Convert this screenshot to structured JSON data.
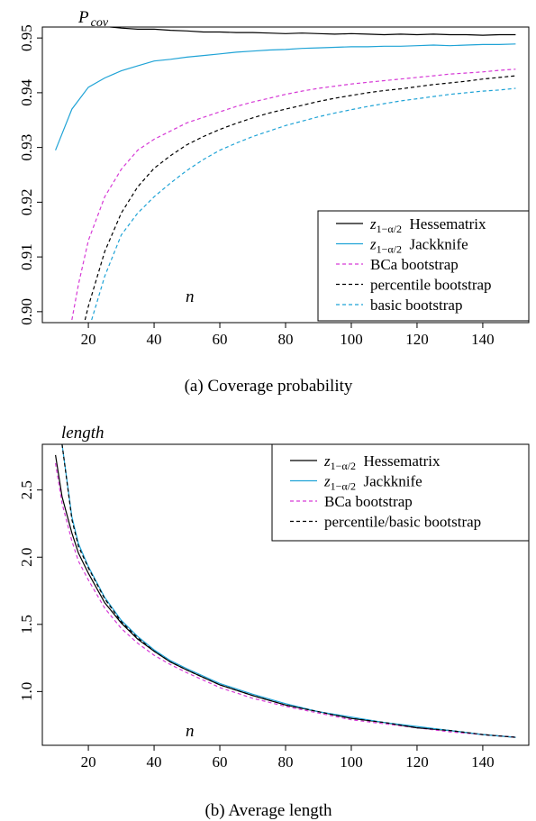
{
  "chart_data": [
    {
      "type": "line",
      "caption": "(a)  Coverage probability",
      "ylabel": "P",
      "ylabel_sub": "cov",
      "xlabel": "n",
      "xlim": [
        6,
        154
      ],
      "ylim": [
        0.898,
        0.952
      ],
      "xticks": [
        20,
        40,
        60,
        80,
        100,
        120,
        140
      ],
      "yticks": [
        0.9,
        0.91,
        0.92,
        0.93,
        0.94,
        0.95
      ],
      "ytick_labels": [
        "0.90",
        "0.91",
        "0.92",
        "0.93",
        "0.94",
        "0.95"
      ],
      "legend_position": "bottom-right",
      "series": [
        {
          "name": "Hessematrix",
          "prefix": "z",
          "prefix_sub": "1−α/2",
          "color": "#000000",
          "dashed": false,
          "x": [
            10,
            15,
            20,
            25,
            30,
            35,
            40,
            45,
            50,
            55,
            60,
            65,
            70,
            75,
            80,
            85,
            90,
            95,
            100,
            105,
            110,
            115,
            120,
            125,
            130,
            135,
            140,
            145,
            150
          ],
          "y": [
            0.9525,
            0.9525,
            0.9522,
            0.9521,
            0.9518,
            0.9516,
            0.9516,
            0.9514,
            0.9513,
            0.9511,
            0.9511,
            0.951,
            0.951,
            0.9509,
            0.9508,
            0.9509,
            0.9508,
            0.9507,
            0.9508,
            0.9507,
            0.9506,
            0.9507,
            0.9506,
            0.9507,
            0.9506,
            0.9506,
            0.9505,
            0.9506,
            0.9506
          ]
        },
        {
          "name": "Jackknife",
          "prefix": "z",
          "prefix_sub": "1−α/2",
          "color": "#1fa3d6",
          "dashed": false,
          "x": [
            10,
            15,
            20,
            25,
            30,
            35,
            40,
            45,
            50,
            55,
            60,
            65,
            70,
            75,
            80,
            85,
            90,
            95,
            100,
            105,
            110,
            115,
            120,
            125,
            130,
            135,
            140,
            145,
            150
          ],
          "y": [
            0.9295,
            0.937,
            0.941,
            0.9427,
            0.944,
            0.9449,
            0.9458,
            0.9461,
            0.9465,
            0.9468,
            0.9471,
            0.9474,
            0.9476,
            0.9478,
            0.9479,
            0.9481,
            0.9482,
            0.9483,
            0.9484,
            0.9484,
            0.9485,
            0.9485,
            0.9486,
            0.9487,
            0.9486,
            0.9487,
            0.9488,
            0.9488,
            0.9489
          ]
        },
        {
          "name": "BCa bootstrap",
          "color": "#d63ad6",
          "dashed": true,
          "x": [
            15,
            17,
            20,
            25,
            30,
            35,
            40,
            45,
            50,
            55,
            60,
            65,
            70,
            75,
            80,
            85,
            90,
            95,
            100,
            105,
            110,
            115,
            120,
            125,
            130,
            135,
            140,
            145,
            150
          ],
          "y": [
            0.8985,
            0.905,
            0.913,
            0.921,
            0.926,
            0.9295,
            0.9315,
            0.933,
            0.9345,
            0.9355,
            0.9365,
            0.9375,
            0.9383,
            0.939,
            0.9397,
            0.9403,
            0.9408,
            0.9412,
            0.9416,
            0.9419,
            0.9422,
            0.9425,
            0.9428,
            0.9431,
            0.9434,
            0.9436,
            0.9438,
            0.9441,
            0.9443
          ]
        },
        {
          "name": "percentile bootstrap",
          "color": "#000000",
          "dashed": true,
          "x": [
            19,
            20,
            22,
            25,
            30,
            35,
            40,
            45,
            50,
            55,
            60,
            65,
            70,
            75,
            80,
            85,
            90,
            95,
            100,
            105,
            110,
            115,
            120,
            125,
            130,
            135,
            140,
            145,
            150
          ],
          "y": [
            0.8985,
            0.901,
            0.905,
            0.911,
            0.918,
            0.9228,
            0.9262,
            0.9285,
            0.9305,
            0.932,
            0.9333,
            0.9344,
            0.9354,
            0.9363,
            0.937,
            0.9377,
            0.9384,
            0.939,
            0.9395,
            0.94,
            0.9404,
            0.9407,
            0.9411,
            0.9415,
            0.9418,
            0.9421,
            0.9425,
            0.9428,
            0.9431
          ]
        },
        {
          "name": "basic bootstrap",
          "color": "#1fa3d6",
          "dashed": true,
          "x": [
            21,
            22,
            25,
            30,
            35,
            40,
            45,
            50,
            55,
            60,
            65,
            70,
            75,
            80,
            85,
            90,
            95,
            100,
            105,
            110,
            115,
            120,
            125,
            130,
            135,
            140,
            145,
            150
          ],
          "y": [
            0.8985,
            0.9005,
            0.9065,
            0.914,
            0.918,
            0.921,
            0.9235,
            0.9258,
            0.9278,
            0.9295,
            0.9308,
            0.932,
            0.933,
            0.934,
            0.9348,
            0.9356,
            0.9363,
            0.9369,
            0.9375,
            0.938,
            0.9385,
            0.9389,
            0.9393,
            0.9397,
            0.94,
            0.9403,
            0.9405,
            0.9408
          ]
        }
      ]
    },
    {
      "type": "line",
      "caption": "(b)  Average length",
      "ylabel": "length",
      "xlabel": "n",
      "xlim": [
        6,
        154
      ],
      "ylim": [
        0.6,
        2.84
      ],
      "xticks": [
        20,
        40,
        60,
        80,
        100,
        120,
        140
      ],
      "yticks": [
        1.0,
        1.5,
        2.0,
        2.5
      ],
      "ytick_labels": [
        "1.0",
        "1.5",
        "2.0",
        "2.5"
      ],
      "legend_position": "top-right",
      "series": [
        {
          "name": "Hessematrix",
          "prefix": "z",
          "prefix_sub": "1−α/2",
          "color": "#000000",
          "dashed": false,
          "x": [
            10,
            12,
            15,
            17,
            20,
            25,
            30,
            35,
            40,
            45,
            50,
            60,
            70,
            80,
            90,
            100,
            110,
            120,
            130,
            140,
            150
          ],
          "y": [
            2.76,
            2.45,
            2.18,
            2.03,
            1.88,
            1.66,
            1.51,
            1.39,
            1.3,
            1.22,
            1.16,
            1.05,
            0.97,
            0.9,
            0.85,
            0.8,
            0.77,
            0.73,
            0.71,
            0.68,
            0.66
          ]
        },
        {
          "name": "Jackknife",
          "prefix": "z",
          "prefix_sub": "1−α/2",
          "color": "#1fa3d6",
          "dashed": false,
          "x": [
            12,
            15,
            17,
            20,
            25,
            30,
            35,
            40,
            45,
            50,
            60,
            70,
            80,
            90,
            100,
            110,
            120,
            130,
            140,
            150
          ],
          "y": [
            2.84,
            2.3,
            2.1,
            1.93,
            1.7,
            1.53,
            1.41,
            1.31,
            1.23,
            1.17,
            1.06,
            0.98,
            0.91,
            0.85,
            0.81,
            0.77,
            0.74,
            0.71,
            0.68,
            0.66
          ]
        },
        {
          "name": "BCa bootstrap",
          "color": "#d63ad6",
          "dashed": true,
          "x": [
            10,
            12,
            15,
            17,
            20,
            25,
            30,
            35,
            40,
            45,
            50,
            60,
            70,
            80,
            90,
            100,
            110,
            120,
            130,
            140,
            150
          ],
          "y": [
            2.7,
            2.4,
            2.12,
            1.97,
            1.83,
            1.62,
            1.47,
            1.36,
            1.27,
            1.2,
            1.14,
            1.03,
            0.95,
            0.89,
            0.84,
            0.79,
            0.76,
            0.73,
            0.7,
            0.68,
            0.66
          ]
        },
        {
          "name": "percentile/basic bootstrap",
          "color": "#000000",
          "dashed": true,
          "x": [
            12,
            15,
            17,
            20,
            25,
            30,
            35,
            40,
            45,
            50,
            60,
            70,
            80,
            90,
            100,
            110,
            120,
            130,
            140,
            150
          ],
          "y": [
            2.84,
            2.28,
            2.08,
            1.92,
            1.69,
            1.52,
            1.4,
            1.3,
            1.22,
            1.16,
            1.05,
            0.97,
            0.9,
            0.85,
            0.8,
            0.77,
            0.73,
            0.71,
            0.68,
            0.66
          ]
        }
      ]
    }
  ]
}
